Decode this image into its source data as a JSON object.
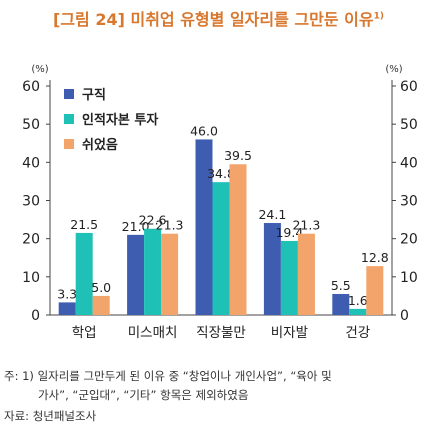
{
  "title": "[그림 24] 미취업 유형별 일자리를 그만둔 이유",
  "title_sup": "1)",
  "notes": {
    "line1": "주: 1) 일자리를 그만두게 된 이유 중 “창업이나 개인사업”, “육아 및",
    "line2": "가사”, “군입대”, “기타” 항목은 제외하였음",
    "source": "자료: 청년패널조사"
  },
  "chart_data": {
    "type": "bar",
    "title": "[그림 24] 미취업 유형별 일자리를 그만둔 이유",
    "xlabel": "",
    "ylabel": "(%)",
    "ylabel_right": "(%)",
    "ylim": [
      0,
      60
    ],
    "yticks": [
      0,
      10,
      20,
      30,
      40,
      50,
      60
    ],
    "categories": [
      "학업",
      "미스매치",
      "직장불만",
      "비자발",
      "건강"
    ],
    "series": [
      {
        "name": "구직",
        "color": "#3f5db0",
        "values": [
          3.3,
          21.0,
          46.0,
          24.1,
          5.5
        ]
      },
      {
        "name": "인적자본 투자",
        "color": "#1fc1b7",
        "values": [
          21.5,
          22.6,
          34.8,
          19.4,
          1.6
        ]
      },
      {
        "name": "쉬었음",
        "color": "#f2a46a",
        "values": [
          5.0,
          21.3,
          39.5,
          21.3,
          12.8
        ]
      }
    ],
    "legend_position": "top-left",
    "grid": false,
    "data_labels": true
  }
}
